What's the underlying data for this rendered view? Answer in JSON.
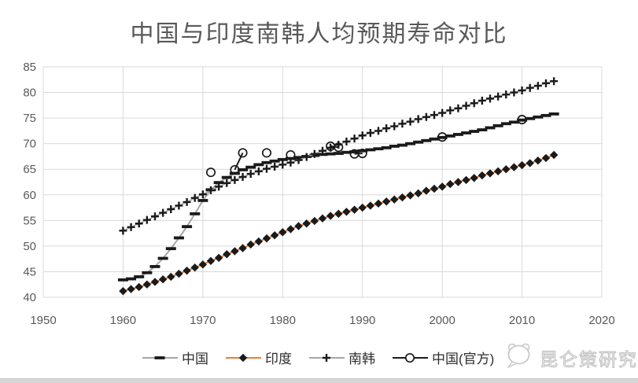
{
  "chart_data": {
    "type": "line",
    "title": "中国与印度南韩人均预期寿命对比",
    "x_axis": {
      "min": 1950,
      "max": 2020,
      "ticks": [
        1950,
        1960,
        1970,
        1980,
        1990,
        2000,
        2010,
        2020
      ]
    },
    "y_axis": {
      "min": 40,
      "max": 85,
      "tick_step": 5,
      "ticks": [
        40,
        45,
        50,
        55,
        60,
        65,
        70,
        75,
        80,
        85
      ]
    },
    "grid": true,
    "legend_position": "bottom",
    "gridline_color": "#d9d9d9",
    "axis_line_color": "#bfbfbf",
    "axis_label_color": "#595959",
    "title_color": "#595959",
    "series": [
      {
        "id": "china",
        "name": "中国",
        "marker": "dash",
        "marker_color": "#1a1a1a",
        "line_color": "#a6a6a6",
        "x_start": 1960,
        "x_step": 1,
        "values": [
          43.4,
          43.6,
          44.0,
          44.8,
          46.0,
          47.6,
          49.5,
          51.6,
          53.8,
          56.3,
          58.9,
          61.0,
          62.4,
          63.4,
          64.2,
          64.9,
          65.4,
          65.9,
          66.3,
          66.6,
          66.9,
          67.1,
          67.3,
          67.5,
          67.7,
          67.9,
          68.0,
          68.1,
          68.3,
          68.4,
          68.6,
          68.8,
          69.0,
          69.2,
          69.5,
          69.7,
          70.0,
          70.3,
          70.6,
          70.9,
          71.2,
          71.5,
          71.8,
          72.1,
          72.4,
          72.7,
          73.1,
          73.5,
          73.9,
          74.2,
          74.6,
          74.9,
          75.2,
          75.5,
          75.8
        ]
      },
      {
        "id": "india",
        "name": "印度",
        "marker": "diamond",
        "marker_color": "#1a1a1a",
        "line_color": "#ed7d31",
        "x_start": 1960,
        "x_step": 1,
        "values": [
          41.2,
          41.6,
          42.0,
          42.5,
          43.0,
          43.5,
          44.0,
          44.6,
          45.2,
          45.8,
          46.4,
          47.1,
          47.7,
          48.4,
          49.0,
          49.6,
          50.3,
          50.9,
          51.5,
          52.1,
          52.7,
          53.3,
          53.9,
          54.4,
          54.9,
          55.4,
          55.9,
          56.3,
          56.7,
          57.1,
          57.5,
          57.9,
          58.3,
          58.7,
          59.1,
          59.5,
          59.9,
          60.3,
          60.8,
          61.2,
          61.6,
          62.1,
          62.5,
          62.9,
          63.3,
          63.8,
          64.2,
          64.6,
          65.0,
          65.4,
          65.8,
          66.2,
          66.7,
          67.2,
          67.8
        ]
      },
      {
        "id": "south-korea",
        "name": "南韩",
        "marker": "plus",
        "marker_color": "#1a1a1a",
        "line_color": "#a6a6a6",
        "x_start": 1960,
        "x_step": 1,
        "values": [
          53.0,
          53.7,
          54.4,
          55.1,
          55.8,
          56.5,
          57.2,
          57.9,
          58.6,
          59.4,
          60.1,
          60.9,
          61.6,
          62.3,
          62.9,
          63.5,
          64.1,
          64.6,
          65.1,
          65.5,
          65.9,
          66.3,
          66.8,
          67.4,
          68.0,
          68.6,
          69.2,
          69.8,
          70.4,
          71.0,
          71.6,
          72.1,
          72.5,
          73.0,
          73.4,
          73.9,
          74.3,
          74.8,
          75.2,
          75.6,
          76.0,
          76.5,
          76.9,
          77.4,
          77.9,
          78.4,
          78.8,
          79.2,
          79.6,
          80.0,
          80.4,
          80.9,
          81.3,
          81.8,
          82.2
        ]
      },
      {
        "id": "china-official",
        "name": "中国(官方)",
        "marker": "circle-open",
        "marker_color": "#1a1a1a",
        "line_color": "#1a1a1a",
        "connect": "consecutive-years-only",
        "points": [
          [
            1971,
            64.4
          ],
          [
            1974,
            64.9
          ],
          [
            1975,
            68.2
          ],
          [
            1978,
            68.2
          ],
          [
            1981,
            67.8
          ],
          [
            1986,
            69.5
          ],
          [
            1987,
            69.3
          ],
          [
            1989,
            68.0
          ],
          [
            1990,
            68.1
          ],
          [
            2000,
            71.3
          ],
          [
            2010,
            74.7
          ]
        ]
      }
    ]
  },
  "watermark": {
    "text": "昆仑策研究院",
    "icon": "kunlun-logo",
    "color": "#c7c7c7"
  },
  "footer": {
    "bar_color": "#d7d7d7"
  }
}
